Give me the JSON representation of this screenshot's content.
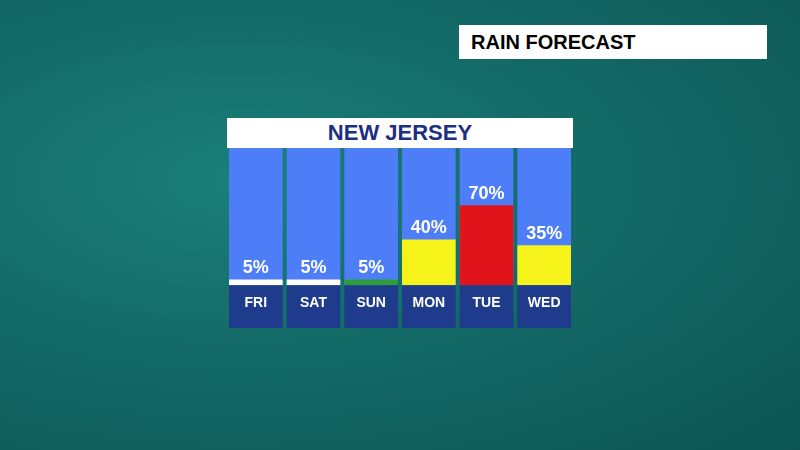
{
  "header": {
    "title": "RAIN FORECAST"
  },
  "chart_data": {
    "type": "bar",
    "title": "NEW JERSEY",
    "categories": [
      "FRI",
      "SAT",
      "SUN",
      "MON",
      "TUE",
      "WED"
    ],
    "values": [
      5,
      5,
      5,
      40,
      70,
      35
    ],
    "value_labels": [
      "5%",
      "5%",
      "5%",
      "40%",
      "70%",
      "35%"
    ],
    "colors": [
      "#ffffff",
      "#ffffff",
      "#2e9e3a",
      "#f5f31a",
      "#e0141a",
      "#f5f31a"
    ],
    "ylim": [
      0,
      120
    ],
    "grid": false,
    "data_labels": true,
    "tick_labels": "x"
  }
}
